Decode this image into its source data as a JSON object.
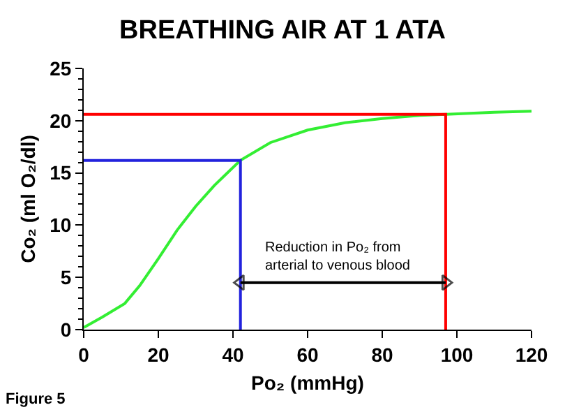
{
  "chart_data": {
    "type": "line",
    "title": "BREATHING AIR AT 1 ATA",
    "xlabel": "Po₂ (mmHg)",
    "ylabel": "Co₂ (ml O₂/dl)",
    "series": [
      {
        "color": "#33ee33",
        "x": [
          0,
          5,
          11,
          15,
          20,
          25,
          30,
          35,
          42,
          50,
          60,
          70,
          80,
          90,
          97,
          110,
          120
        ],
        "values": [
          0.2,
          1.2,
          2.5,
          4.2,
          6.8,
          9.5,
          11.8,
          13.8,
          16.2,
          17.9,
          19.1,
          19.8,
          20.2,
          20.5,
          20.6,
          20.8,
          20.9
        ]
      },
      {
        "color": "#ff0000",
        "x": [
          0,
          97,
          97
        ],
        "values": [
          20.6,
          20.6,
          0
        ]
      },
      {
        "color": "#2222dd",
        "x": [
          0,
          42,
          42
        ],
        "values": [
          16.2,
          16.2,
          0
        ]
      },
      {
        "color": "#000000",
        "x": [
          42,
          97
        ],
        "values": [
          4.5,
          4.5
        ],
        "marker": "triangle"
      }
    ],
    "annotations": [
      "Reduction in Po₂ from\narterial to venous blood",
      "Figure 5"
    ],
    "xlim": [
      0,
      120
    ],
    "xticks": [
      0,
      20,
      40,
      60,
      80,
      100,
      120
    ],
    "ylim": [
      0,
      25
    ],
    "yticks": [
      0,
      5,
      10,
      15,
      20,
      25
    ],
    "marker": "none",
    "line_style": "solid"
  }
}
